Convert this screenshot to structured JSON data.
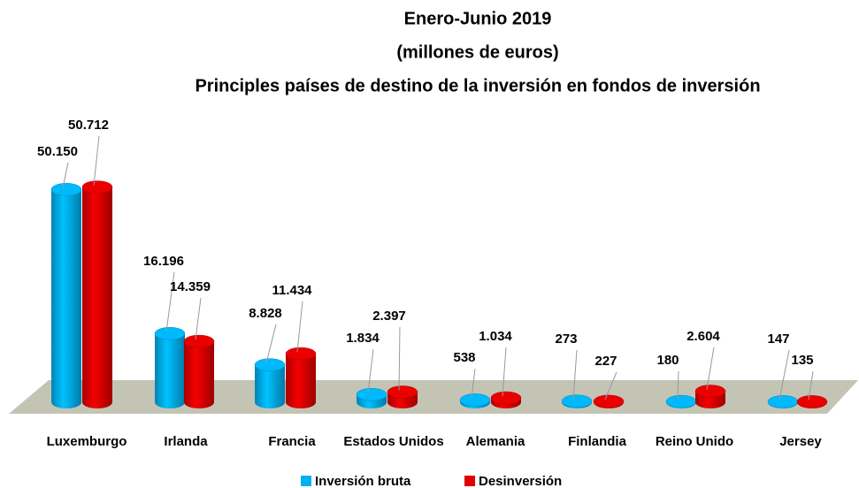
{
  "chart_data": {
    "type": "bar",
    "title": [
      "Enero-Junio 2019",
      "(millones de euros)",
      "Principles países de destino de la inversión en fondos de inversión"
    ],
    "categories": [
      "Luxemburgo",
      "Irlanda",
      "Francia",
      "Estados Unidos",
      "Alemania",
      "Finlandia",
      "Reino Unido",
      "Jersey"
    ],
    "series": [
      {
        "name": "Inversión bruta",
        "color": "#00b0f0",
        "values": [
          50150,
          16196,
          8828,
          1834,
          538,
          273,
          180,
          147
        ],
        "value_labels": [
          "50.150",
          "16.196",
          "8.828",
          "1.834",
          "538",
          "273",
          "180",
          "147"
        ]
      },
      {
        "name": "Desinversión",
        "color": "#e00000",
        "values": [
          50712,
          14359,
          11434,
          2397,
          1034,
          227,
          2604,
          135
        ],
        "value_labels": [
          "50.712",
          "14.359",
          "11.434",
          "2.397",
          "1.034",
          "227",
          "2.604",
          "135"
        ]
      }
    ],
    "legend": "bottom"
  }
}
